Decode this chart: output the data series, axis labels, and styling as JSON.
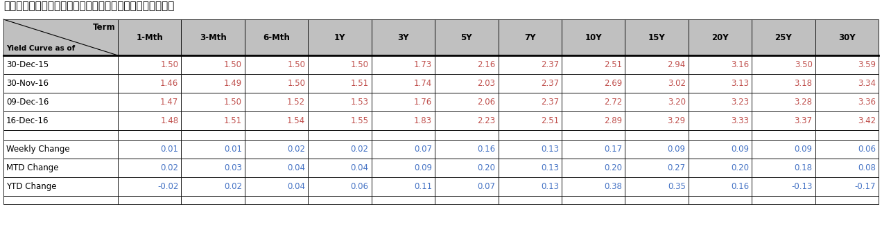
{
  "title": "อัตราผลตอบแทนพันธบัตรรัฐบาล",
  "header_terms": [
    "1-Mth",
    "3-Mth",
    "6-Mth",
    "1Y",
    "3Y",
    "5Y",
    "7Y",
    "10Y",
    "15Y",
    "20Y",
    "25Y",
    "30Y"
  ],
  "subheader": "Yield Curve as of",
  "rows": [
    [
      "30-Dec-15",
      "1.50",
      "1.50",
      "1.50",
      "1.50",
      "1.73",
      "2.16",
      "2.37",
      "2.51",
      "2.94",
      "3.16",
      "3.50",
      "3.59"
    ],
    [
      "30-Nov-16",
      "1.46",
      "1.49",
      "1.50",
      "1.51",
      "1.74",
      "2.03",
      "2.37",
      "2.69",
      "3.02",
      "3.13",
      "3.18",
      "3.34"
    ],
    [
      "09-Dec-16",
      "1.47",
      "1.50",
      "1.52",
      "1.53",
      "1.76",
      "2.06",
      "2.37",
      "2.72",
      "3.20",
      "3.23",
      "3.28",
      "3.36"
    ],
    [
      "16-Dec-16",
      "1.48",
      "1.51",
      "1.54",
      "1.55",
      "1.83",
      "2.23",
      "2.51",
      "2.89",
      "3.29",
      "3.33",
      "3.37",
      "3.42"
    ]
  ],
  "change_rows": [
    [
      "Weekly Change",
      "0.01",
      "0.01",
      "0.02",
      "0.02",
      "0.07",
      "0.16",
      "0.13",
      "0.17",
      "0.09",
      "0.09",
      "0.09",
      "0.06"
    ],
    [
      "MTD Change",
      "0.02",
      "0.03",
      "0.04",
      "0.04",
      "0.09",
      "0.20",
      "0.13",
      "0.20",
      "0.27",
      "0.20",
      "0.18",
      "0.08"
    ],
    [
      "YTD Change",
      "-0.02",
      "0.02",
      "0.04",
      "0.06",
      "0.11",
      "0.07",
      "0.13",
      "0.38",
      "0.35",
      "0.16",
      "-0.13",
      "-0.17"
    ]
  ],
  "header_bg": "#C0C0C0",
  "row_bg": "#FFFFFF",
  "header_text_color": "#000000",
  "data_text_color": "#C0504D",
  "change_text_color": "#4472C4",
  "label_text_color": "#000000",
  "border_color": "#000000",
  "title_color": "#000000",
  "title_fontsize": 11,
  "header_fontsize": 8.5,
  "data_fontsize": 8.5
}
